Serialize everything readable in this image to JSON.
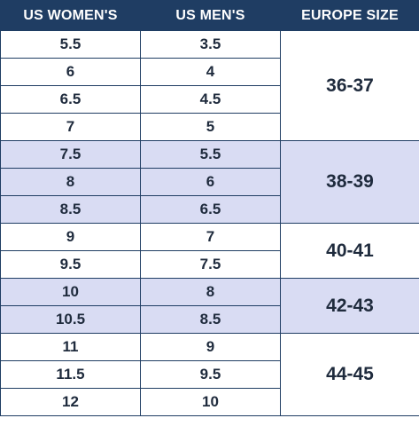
{
  "table": {
    "headers": [
      "US WOMEN'S",
      "US MEN'S",
      "EUROPE SIZE"
    ],
    "groups": [
      {
        "europe": "36-37",
        "shaded": false,
        "rows": [
          {
            "women": "5.5",
            "men": "3.5"
          },
          {
            "women": "6",
            "men": "4"
          },
          {
            "women": "6.5",
            "men": "4.5"
          },
          {
            "women": "7",
            "men": "5"
          }
        ]
      },
      {
        "europe": "38-39",
        "shaded": true,
        "rows": [
          {
            "women": "7.5",
            "men": "5.5"
          },
          {
            "women": "8",
            "men": "6"
          },
          {
            "women": "8.5",
            "men": "6.5"
          }
        ]
      },
      {
        "europe": "40-41",
        "shaded": false,
        "rows": [
          {
            "women": "9",
            "men": "7"
          },
          {
            "women": "9.5",
            "men": "7.5"
          }
        ]
      },
      {
        "europe": "42-43",
        "shaded": true,
        "rows": [
          {
            "women": "10",
            "men": "8"
          },
          {
            "women": "10.5",
            "men": "8.5"
          }
        ]
      },
      {
        "europe": "44-45",
        "shaded": false,
        "rows": [
          {
            "women": "11",
            "men": "9"
          },
          {
            "women": "11.5",
            "men": "9.5"
          },
          {
            "women": "12",
            "men": "10"
          }
        ]
      }
    ]
  },
  "colors": {
    "header_bg": "#1f3d63",
    "border": "#1f3d63",
    "shade": "#d9dcf3"
  }
}
